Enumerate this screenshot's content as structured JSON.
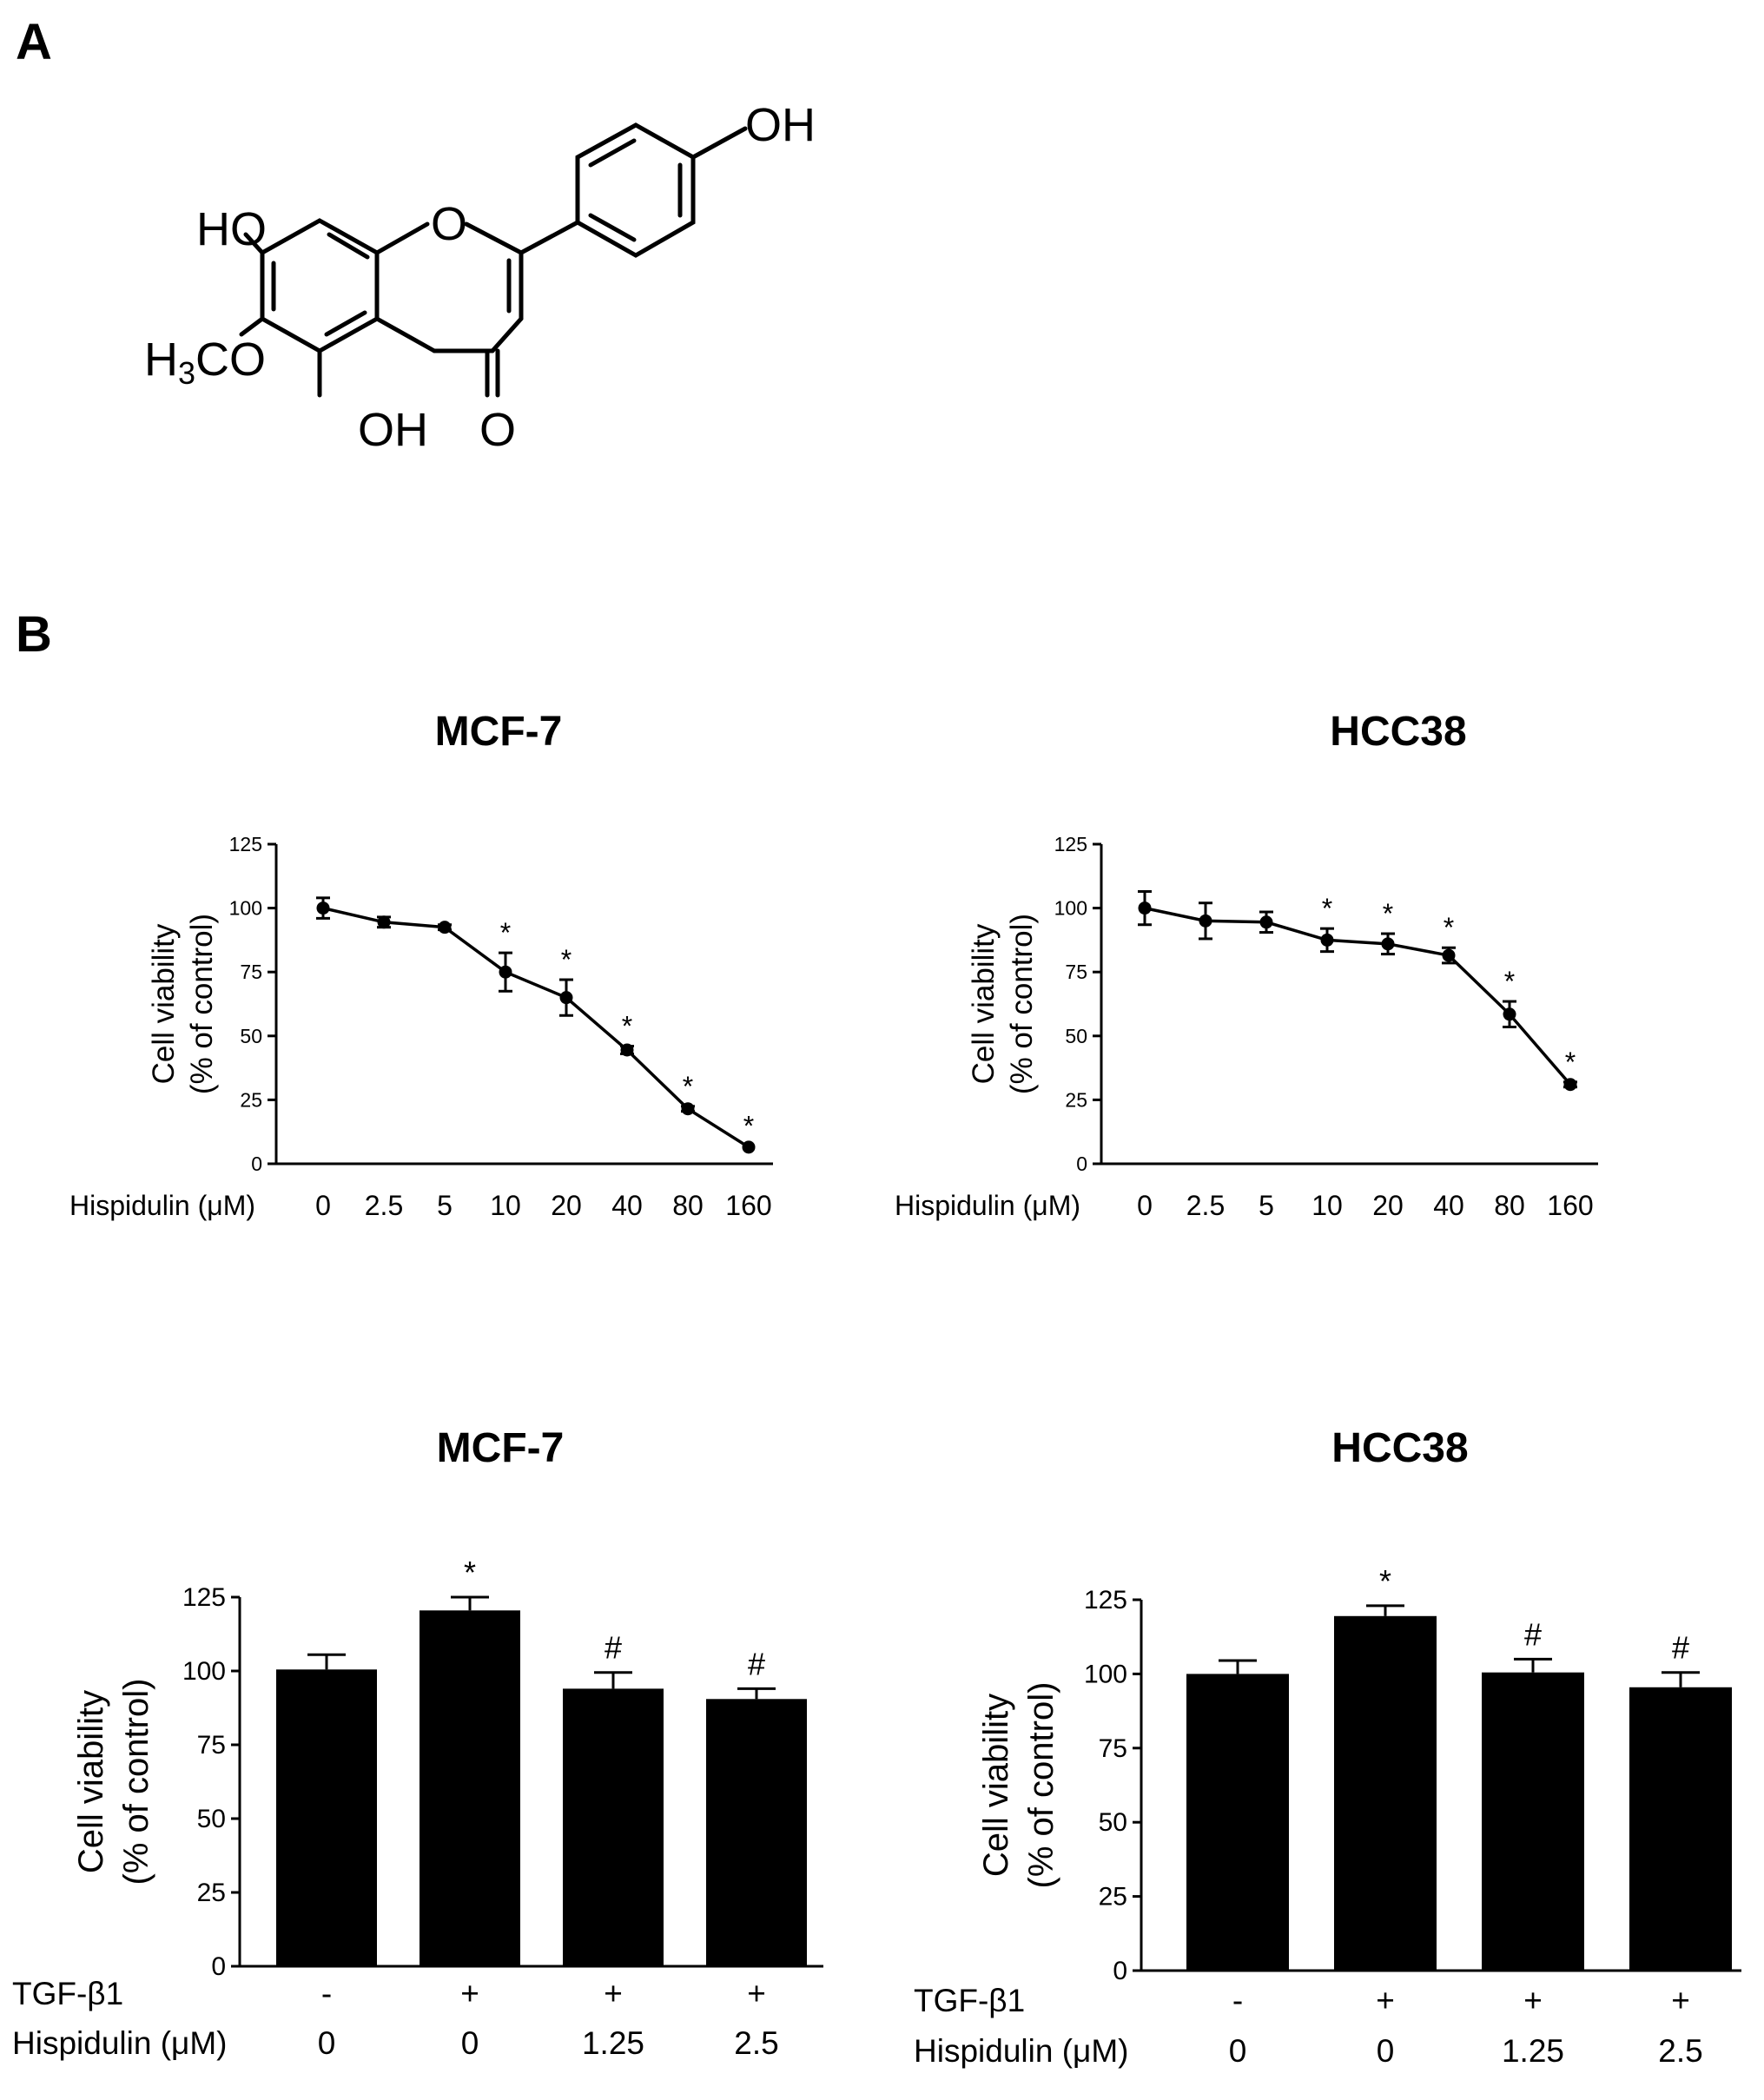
{
  "panels": {
    "a": "A",
    "b": "B"
  },
  "structure": {
    "labels": {
      "oh_top": "OH",
      "ho_left": "HO",
      "och3_left": "H3CO",
      "oh_bottom": "OH",
      "ring_o": "O",
      "carbonyl_o": "O"
    },
    "color": "#000000"
  },
  "chart_data": [
    {
      "id": "mcf7-line",
      "type": "line",
      "title": "MCF-7",
      "ylabel": [
        "Cell viability",
        "(% of control)"
      ],
      "xlabel": "Hispidulin (μM)",
      "ylim": [
        0,
        125
      ],
      "yticks": [
        0,
        25,
        50,
        75,
        100,
        125
      ],
      "categories": [
        "0",
        "2.5",
        "5",
        "10",
        "20",
        "40",
        "80",
        "160"
      ],
      "values": [
        100,
        94.5,
        92.5,
        75,
        65,
        44.5,
        21.5,
        6.5
      ],
      "errors": [
        4,
        2,
        1,
        7.5,
        7,
        1.5,
        1,
        0.5
      ],
      "annotations": [
        "",
        "",
        "",
        "*",
        "*",
        "*",
        "*",
        "*"
      ],
      "color": "#000000"
    },
    {
      "id": "hcc38-line",
      "type": "line",
      "title": "HCC38",
      "ylabel": [
        "Cell viability",
        "(% of control)"
      ],
      "xlabel": "Hispidulin (μM)",
      "ylim": [
        0,
        125
      ],
      "yticks": [
        0,
        25,
        50,
        75,
        100,
        125
      ],
      "categories": [
        "0",
        "2.5",
        "5",
        "10",
        "20",
        "40",
        "80",
        "160"
      ],
      "values": [
        100,
        95,
        94.5,
        87.5,
        86,
        81.5,
        58.5,
        31
      ],
      "errors": [
        6.5,
        7,
        4,
        4.5,
        4,
        3,
        5,
        1
      ],
      "annotations": [
        "",
        "",
        "",
        "*",
        "*",
        "*",
        "*",
        "*"
      ],
      "color": "#000000"
    },
    {
      "id": "mcf7-bar",
      "type": "bar",
      "title": "MCF-7",
      "ylabel": [
        "Cell viability",
        "(% of control)"
      ],
      "ylim": [
        0,
        125
      ],
      "yticks": [
        0,
        25,
        50,
        75,
        100,
        125
      ],
      "rows": [
        {
          "label": "TGF-β1",
          "values": [
            "-",
            "+",
            "+",
            "+"
          ]
        },
        {
          "label": "Hispidulin (μM)",
          "values": [
            "0",
            "0",
            "1.25",
            "2.5"
          ]
        }
      ],
      "values": [
        100.5,
        120.5,
        94,
        90.5
      ],
      "errors": [
        5,
        4.5,
        5.5,
        3.5
      ],
      "annotations": [
        "",
        "*",
        "#",
        "#"
      ],
      "color": "#000000"
    },
    {
      "id": "hcc38-bar",
      "type": "bar",
      "title": "HCC38",
      "ylabel": [
        "Cell viability",
        "(% of control)"
      ],
      "ylim": [
        0,
        125
      ],
      "yticks": [
        0,
        25,
        50,
        75,
        100,
        125
      ],
      "rows": [
        {
          "label": "TGF-β1",
          "values": [
            "-",
            "+",
            "+",
            "+"
          ]
        },
        {
          "label": "Hispidulin (μM)",
          "values": [
            "0",
            "0",
            "1.25",
            "2.5"
          ]
        }
      ],
      "values": [
        100,
        119.5,
        100.5,
        95.5
      ],
      "errors": [
        4.5,
        3.5,
        4.5,
        5
      ],
      "annotations": [
        "",
        "*",
        "#",
        "#"
      ],
      "color": "#000000"
    }
  ]
}
